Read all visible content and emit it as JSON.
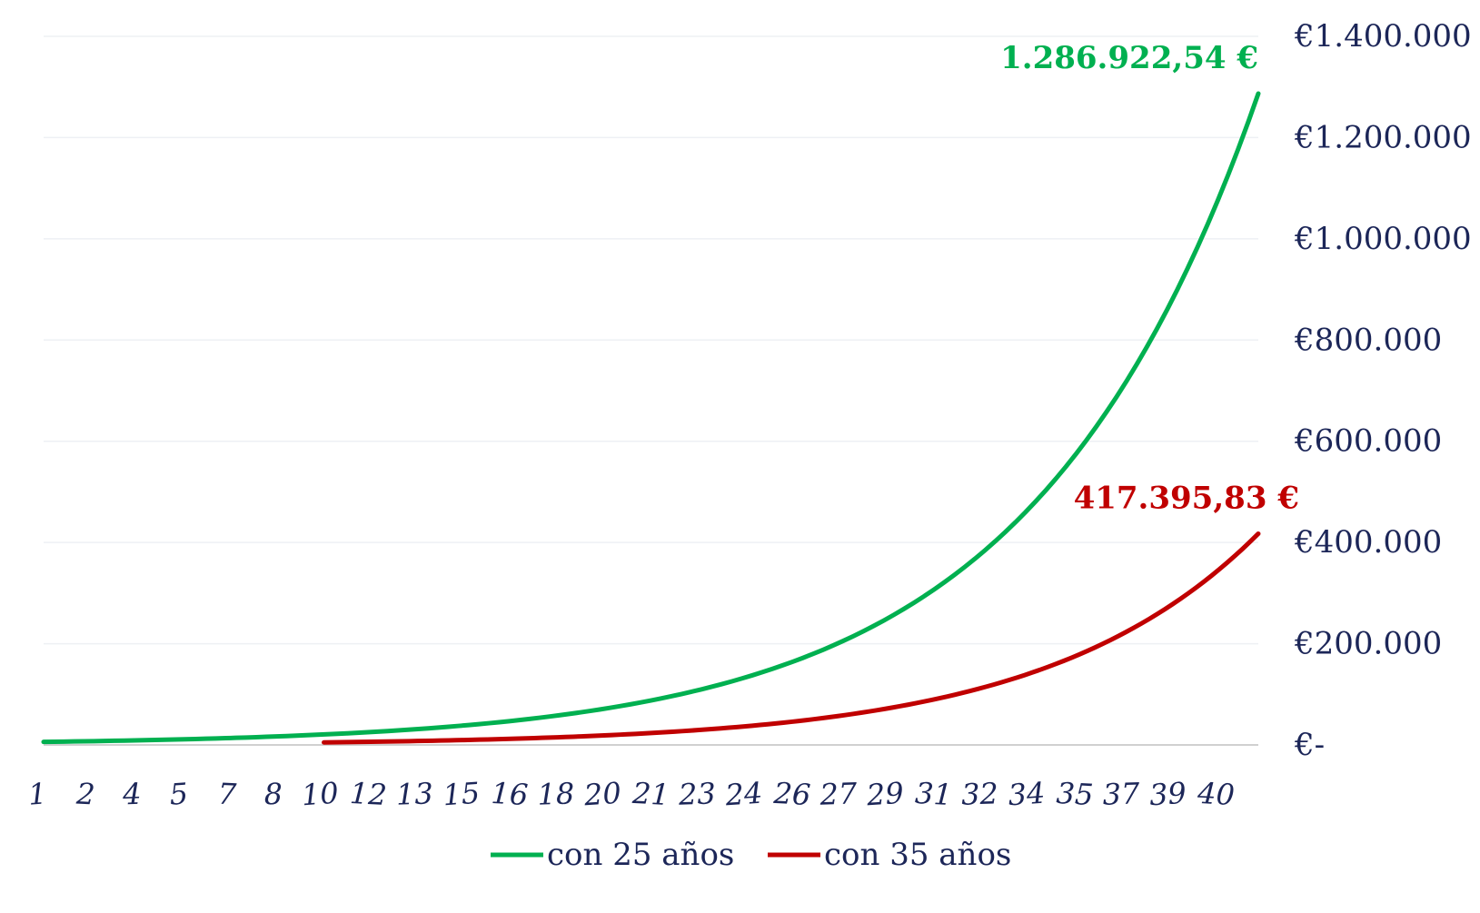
{
  "chart_data": {
    "type": "line",
    "x_tick_labels": [
      "1",
      "2",
      "4",
      "5",
      "7",
      "8",
      "10",
      "12",
      "13",
      "15",
      "16",
      "18",
      "20",
      "21",
      "23",
      "24",
      "26",
      "27",
      "29",
      "31",
      "32",
      "34",
      "35",
      "37",
      "39",
      "40"
    ],
    "xlim": [
      1,
      40
    ],
    "y_tick_labels": [
      "€-",
      "€200.000",
      "€400.000",
      "€600.000",
      "€800.000",
      "€1.000.000",
      "€1.200.000",
      "€1.400.000"
    ],
    "ylim": [
      0,
      1400000
    ],
    "grid": true,
    "legend_position": "bottom",
    "series": [
      {
        "name": "con 25 años",
        "color": "#00b050",
        "start_x": 1,
        "start_value": 6000,
        "end_x": 40,
        "end_value": 1286922.54,
        "end_label": "1.286.922,54 €"
      },
      {
        "name": "con 35 años",
        "color": "#c00000",
        "start_x": 10,
        "start_value": 5000,
        "end_x": 40,
        "end_value": 417395.83,
        "end_label": "417.395,83 €"
      }
    ]
  }
}
